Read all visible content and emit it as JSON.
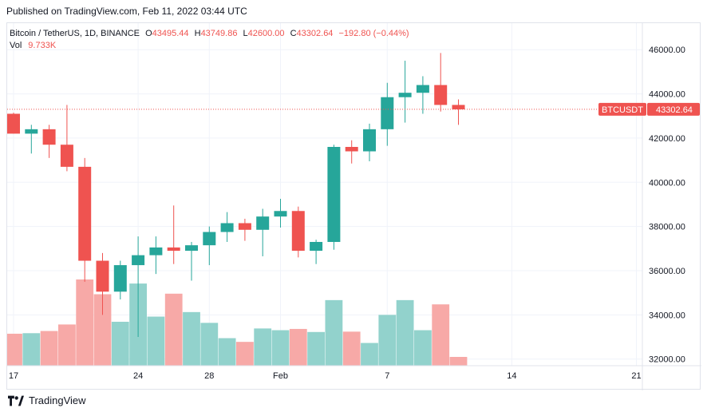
{
  "header": {
    "published": "Published on TradingView.com, Feb 11, 2022 03:44 UTC"
  },
  "legend": {
    "symbol": "Bitcoin / TetherUS, 1D, BINANCE",
    "open_label": "O",
    "open": "43495.44",
    "high_label": "H",
    "high": "43749.86",
    "low_label": "L",
    "low": "42600.00",
    "close_label": "C",
    "close": "43302.64",
    "change": "−192.80 (−0.44%)",
    "vol_label": "Vol",
    "vol": "9.733K"
  },
  "price_tag": {
    "ticker": "BTCUSDT",
    "price": "43302.64"
  },
  "footer": {
    "brand": "TradingView"
  },
  "colors": {
    "up": "#26a69a",
    "down": "#ef5350",
    "up_vol": "#92d2cc",
    "down_vol": "#f7a9a7",
    "grid": "#f0f3fa",
    "text": "#131722"
  },
  "chart_data": {
    "type": "candlestick",
    "symbol": "BTCUSDT",
    "interval": "1D",
    "y_ticks": [
      "32000.00",
      "34000.00",
      "36000.00",
      "38000.00",
      "40000.00",
      "42000.00",
      "44000.00",
      "46000.00"
    ],
    "ylim": [
      31700,
      47200
    ],
    "x_ticks": [
      {
        "label": "17",
        "index": 0
      },
      {
        "label": "24",
        "index": 7
      },
      {
        "label": "28",
        "index": 11
      },
      {
        "label": "Feb",
        "index": 15
      },
      {
        "label": "7",
        "index": 21
      },
      {
        "label": "14",
        "index": 28
      },
      {
        "label": "21",
        "index": 35
      }
    ],
    "candles": [
      {
        "o": 43100,
        "h": 43150,
        "l": 42200,
        "c": 42200
      },
      {
        "o": 42200,
        "h": 42600,
        "l": 41300,
        "c": 42400
      },
      {
        "o": 42400,
        "h": 42600,
        "l": 41100,
        "c": 41700
      },
      {
        "o": 41700,
        "h": 43500,
        "l": 40500,
        "c": 40700
      },
      {
        "o": 40700,
        "h": 41100,
        "l": 35500,
        "c": 36450
      },
      {
        "o": 36450,
        "h": 36800,
        "l": 34000,
        "c": 35050
      },
      {
        "o": 35050,
        "h": 36450,
        "l": 34700,
        "c": 36250
      },
      {
        "o": 36250,
        "h": 37550,
        "l": 33000,
        "c": 36700
      },
      {
        "o": 36700,
        "h": 37550,
        "l": 35850,
        "c": 37050
      },
      {
        "o": 37050,
        "h": 38950,
        "l": 36300,
        "c": 36900
      },
      {
        "o": 36900,
        "h": 37300,
        "l": 35550,
        "c": 37150
      },
      {
        "o": 37150,
        "h": 38000,
        "l": 36250,
        "c": 37750
      },
      {
        "o": 37750,
        "h": 38650,
        "l": 37300,
        "c": 38150
      },
      {
        "o": 38150,
        "h": 38350,
        "l": 37350,
        "c": 37850
      },
      {
        "o": 37850,
        "h": 38800,
        "l": 36650,
        "c": 38450
      },
      {
        "o": 38450,
        "h": 39250,
        "l": 37950,
        "c": 38700
      },
      {
        "o": 38700,
        "h": 38900,
        "l": 36600,
        "c": 36900
      },
      {
        "o": 36900,
        "h": 37400,
        "l": 36300,
        "c": 37300
      },
      {
        "o": 37300,
        "h": 41700,
        "l": 36950,
        "c": 41600
      },
      {
        "o": 41600,
        "h": 41900,
        "l": 40850,
        "c": 41400
      },
      {
        "o": 41400,
        "h": 42650,
        "l": 40950,
        "c": 42400
      },
      {
        "o": 42400,
        "h": 44500,
        "l": 41650,
        "c": 43850
      },
      {
        "o": 43850,
        "h": 45500,
        "l": 42700,
        "c": 44050
      },
      {
        "o": 44050,
        "h": 44800,
        "l": 43100,
        "c": 44400
      },
      {
        "o": 44400,
        "h": 45850,
        "l": 43200,
        "c": 43500
      },
      {
        "o": 43500,
        "h": 43750,
        "l": 42600,
        "c": 43300
      }
    ],
    "volume": [
      {
        "v": 35.3,
        "dir": "down"
      },
      {
        "v": 35.9,
        "dir": "up"
      },
      {
        "v": 38.3,
        "dir": "down"
      },
      {
        "v": 45.5,
        "dir": "down"
      },
      {
        "v": 95.2,
        "dir": "down"
      },
      {
        "v": 78.9,
        "dir": "down"
      },
      {
        "v": 48.5,
        "dir": "up"
      },
      {
        "v": 90.7,
        "dir": "up"
      },
      {
        "v": 54.2,
        "dir": "up"
      },
      {
        "v": 79.5,
        "dir": "down"
      },
      {
        "v": 59.2,
        "dir": "up"
      },
      {
        "v": 47.3,
        "dir": "up"
      },
      {
        "v": 30.4,
        "dir": "up"
      },
      {
        "v": 26.3,
        "dir": "down"
      },
      {
        "v": 41.1,
        "dir": "up"
      },
      {
        "v": 39.2,
        "dir": "up"
      },
      {
        "v": 40.6,
        "dir": "down"
      },
      {
        "v": 37.2,
        "dir": "up"
      },
      {
        "v": 72.4,
        "dir": "up"
      },
      {
        "v": 37.6,
        "dir": "down"
      },
      {
        "v": 25.1,
        "dir": "up"
      },
      {
        "v": 56.1,
        "dir": "up"
      },
      {
        "v": 72.4,
        "dir": "up"
      },
      {
        "v": 39.2,
        "dir": "up"
      },
      {
        "v": 67.7,
        "dir": "down"
      },
      {
        "v": 9.7,
        "dir": "down"
      }
    ],
    "last_price": 43302.64
  }
}
